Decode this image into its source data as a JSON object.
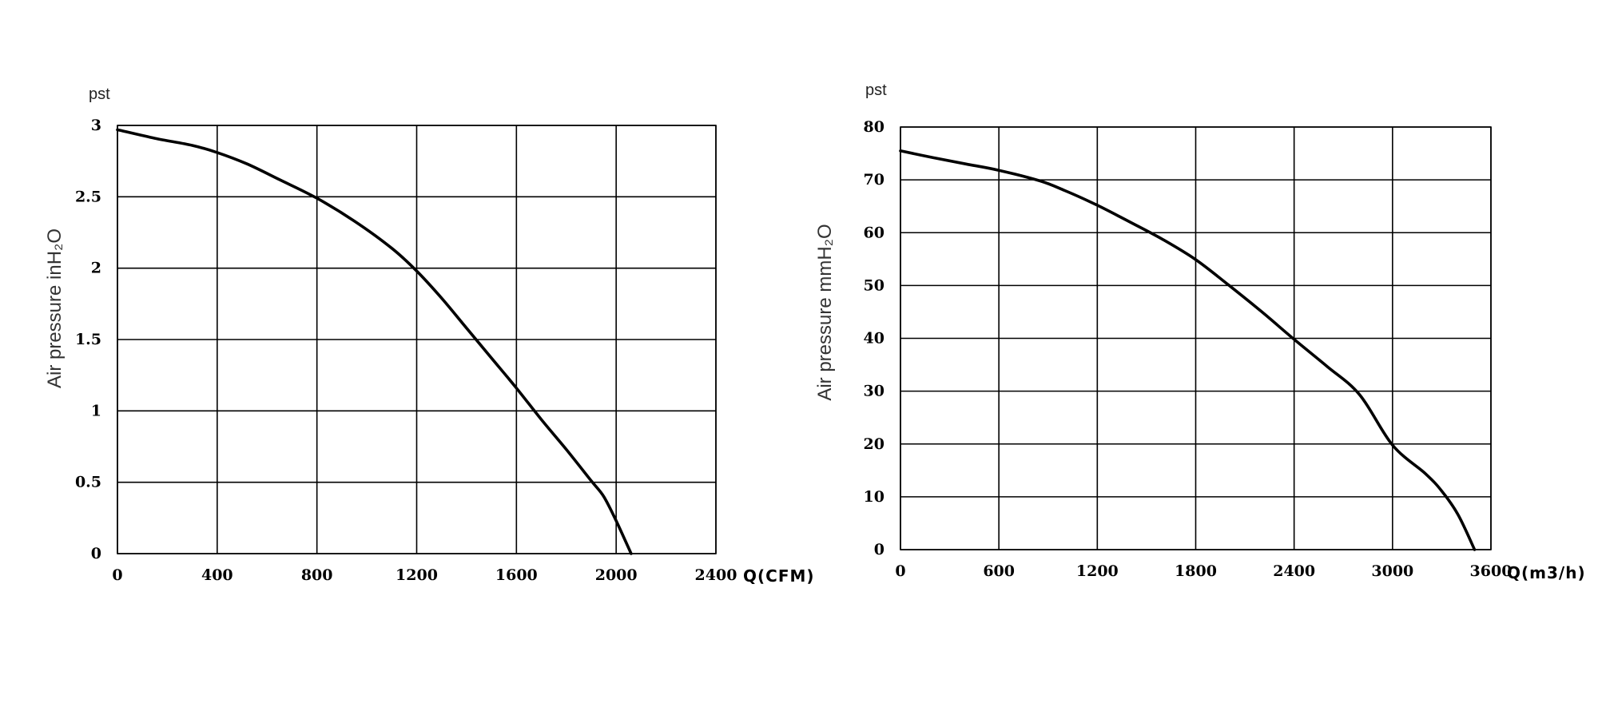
{
  "chart_data": [
    {
      "type": "line",
      "corner_label": "pst",
      "xlabel": "Q(CFM)",
      "ylabel": "Air pressure inH₂O",
      "xlim": [
        0,
        2400
      ],
      "ylim": [
        0,
        3
      ],
      "x_ticks": [
        "0",
        "400",
        "800",
        "1200",
        "1600",
        "2000",
        "2400"
      ],
      "y_ticks": [
        "0",
        "0.5",
        "1",
        "1.5",
        "2",
        "2.5",
        "3"
      ],
      "x_tick_values": [
        0,
        400,
        800,
        1200,
        1600,
        2000,
        2400
      ],
      "y_tick_values": [
        0,
        0.5,
        1,
        1.5,
        2,
        2.5,
        3
      ],
      "grid": true,
      "series": [
        {
          "x": [
            0,
            150,
            300,
            400,
            520,
            650,
            800,
            950,
            1100,
            1200,
            1300,
            1400,
            1500,
            1600,
            1700,
            1800,
            1900,
            1950,
            2000,
            2060
          ],
          "y": [
            2.97,
            2.91,
            2.86,
            2.81,
            2.73,
            2.62,
            2.49,
            2.33,
            2.14,
            1.98,
            1.79,
            1.58,
            1.37,
            1.16,
            0.94,
            0.73,
            0.51,
            0.4,
            0.23,
            0.0
          ]
        }
      ]
    },
    {
      "type": "line",
      "corner_label": "pst",
      "xlabel": "Q(m3/h)",
      "ylabel": "Air pressure mmH₂O",
      "xlim": [
        0,
        3600
      ],
      "ylim": [
        0,
        80
      ],
      "x_ticks": [
        "0",
        "600",
        "1200",
        "1800",
        "2400",
        "3000",
        "3600"
      ],
      "y_ticks": [
        "0",
        "10",
        "20",
        "30",
        "40",
        "50",
        "60",
        "70",
        "80"
      ],
      "x_tick_values": [
        0,
        600,
        1200,
        1800,
        2400,
        3000,
        3600
      ],
      "y_tick_values": [
        0,
        10,
        20,
        30,
        40,
        50,
        60,
        70,
        80
      ],
      "grid": true,
      "series": [
        {
          "x": [
            0,
            200,
            400,
            600,
            850,
            1000,
            1200,
            1400,
            1600,
            1800,
            2000,
            2200,
            2400,
            2600,
            2800,
            3000,
            3200,
            3300,
            3400,
            3500
          ],
          "y": [
            75.5,
            74.2,
            73.0,
            71.8,
            69.8,
            68.0,
            65.2,
            62.0,
            58.7,
            54.9,
            50.1,
            45.1,
            39.8,
            34.7,
            29.3,
            19.8,
            14.4,
            11.1,
            6.6,
            0.0
          ]
        }
      ]
    }
  ]
}
